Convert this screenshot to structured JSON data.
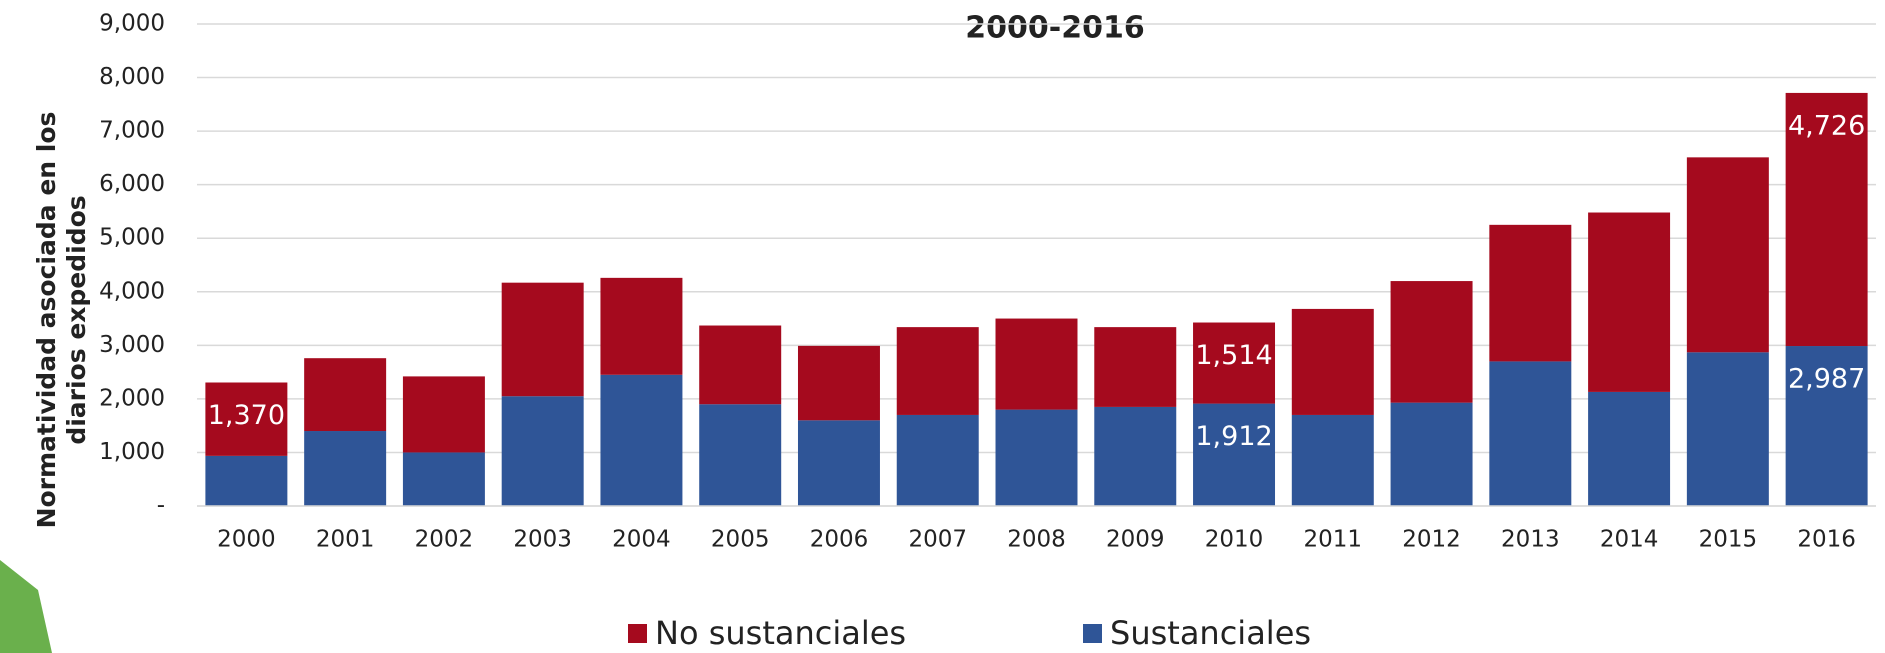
{
  "chart_data": {
    "type": "stacked_bar",
    "title": "2000-2016",
    "y_label": [
      "Normatividad asociada en los",
      "diarios expedidos"
    ],
    "categories": [
      "2000",
      "2001",
      "2002",
      "2003",
      "2004",
      "2005",
      "2006",
      "2007",
      "2008",
      "2009",
      "2010",
      "2011",
      "2012",
      "2013",
      "2014",
      "2015",
      "2016"
    ],
    "series": [
      {
        "name": "No sustanciales",
        "color": "#a50a1e",
        "values": [
          1370,
          1360,
          1420,
          2120,
          1810,
          1470,
          1390,
          1640,
          1700,
          1490,
          1514,
          1980,
          2270,
          2550,
          3350,
          3640,
          4726
        ],
        "value_labels": [
          "1,370",
          null,
          null,
          null,
          null,
          null,
          null,
          null,
          null,
          null,
          "1,514",
          null,
          null,
          null,
          null,
          null,
          "4,726"
        ]
      },
      {
        "name": "Sustanciales",
        "color": "#2f5597",
        "values": [
          936,
          1400,
          1000,
          2050,
          2450,
          1900,
          1600,
          1700,
          1800,
          1850,
          1912,
          1700,
          1930,
          2700,
          2130,
          2870,
          2987
        ],
        "value_labels": [
          null,
          null,
          null,
          null,
          null,
          null,
          null,
          null,
          null,
          null,
          "1,912",
          null,
          null,
          null,
          null,
          null,
          "2,987"
        ]
      }
    ],
    "ylim": [
      0,
      9000
    ],
    "yticks": [
      {
        "value": 0,
        "label": "-"
      },
      {
        "value": 1000,
        "label": "1,000"
      },
      {
        "value": 2000,
        "label": "2,000"
      },
      {
        "value": 3000,
        "label": "3,000"
      },
      {
        "value": 4000,
        "label": "4,000"
      },
      {
        "value": 5000,
        "label": "5,000"
      },
      {
        "value": 6000,
        "label": "6,000"
      },
      {
        "value": 7000,
        "label": "7,000"
      },
      {
        "value": 8000,
        "label": "8,000"
      },
      {
        "value": 9000,
        "label": "9,000"
      }
    ],
    "grid": true,
    "legend": "bottom"
  }
}
